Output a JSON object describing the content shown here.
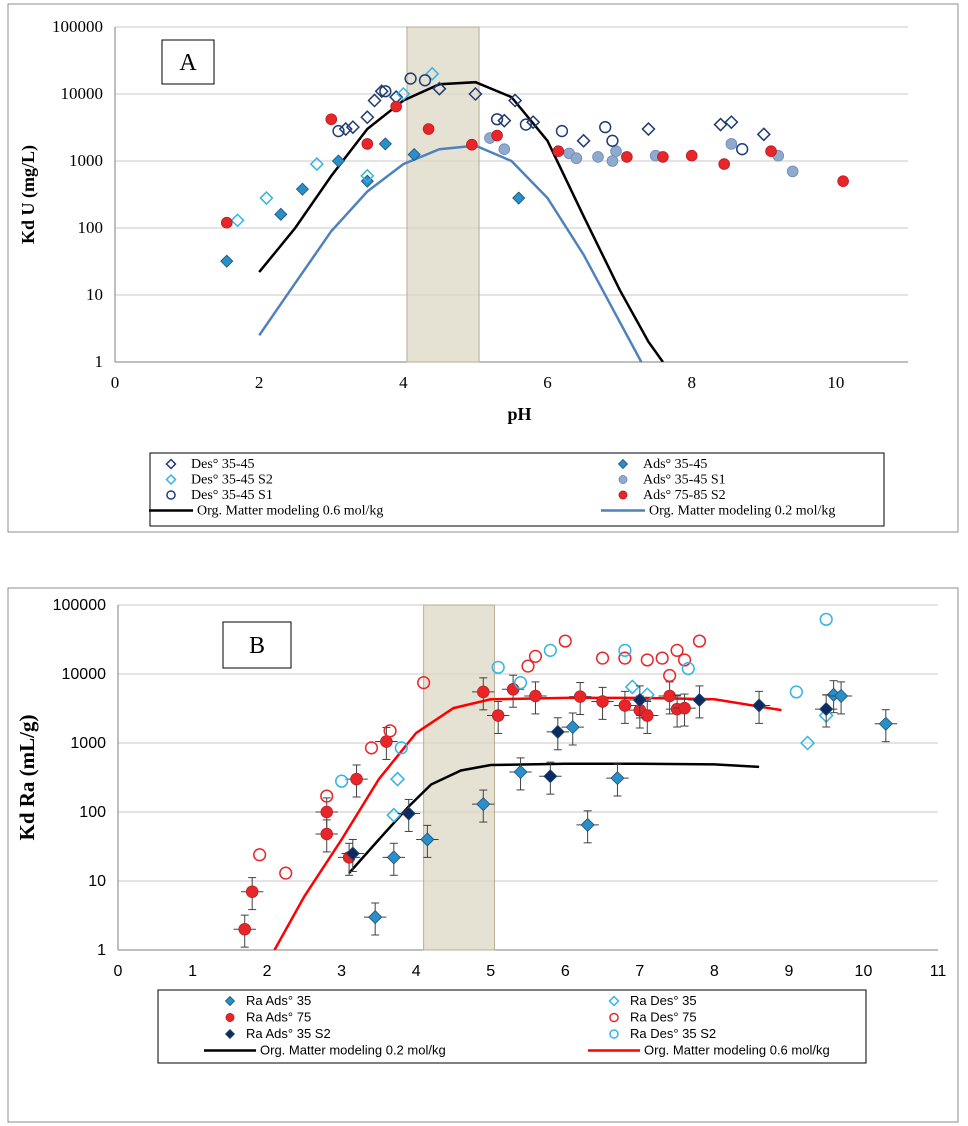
{
  "chart_data": [
    {
      "type": "scatter",
      "panel_label": "A",
      "xlabel": "pH",
      "ylabel": "Kd U (mg/L)",
      "xlim": [
        0,
        11
      ],
      "ylim": [
        1,
        100000
      ],
      "yscale": "log",
      "x_ticks": [
        "0",
        "2",
        "4",
        "6",
        "8",
        "10"
      ],
      "y_ticks": [
        "1",
        "10",
        "100",
        "1000",
        "10000",
        "100000"
      ],
      "highlight_band": [
        4.05,
        5.05
      ],
      "grid": "horizontal",
      "legend_position": "bottom",
      "series": [
        {
          "name": "Des° 35-45",
          "marker": "diamond-open",
          "color": "#1f3b73",
          "points": [
            [
              3.2,
              3000
            ],
            [
              3.3,
              3200
            ],
            [
              3.5,
              4500
            ],
            [
              3.6,
              8000
            ],
            [
              3.7,
              11000
            ],
            [
              3.9,
              9000
            ],
            [
              4.5,
              12000
            ],
            [
              5.0,
              10000
            ],
            [
              5.4,
              4000
            ],
            [
              5.55,
              8000
            ],
            [
              5.8,
              3800
            ],
            [
              6.5,
              2000
            ],
            [
              7.4,
              3000
            ],
            [
              8.4,
              3500
            ],
            [
              8.55,
              3800
            ],
            [
              9.0,
              2500
            ]
          ]
        },
        {
          "name": "Ads° 35-45",
          "marker": "diamond-filled",
          "color": "#2a8fc9",
          "points": [
            [
              1.55,
              32
            ],
            [
              2.3,
              160
            ],
            [
              2.6,
              380
            ],
            [
              3.1,
              1000
            ],
            [
              3.5,
              500
            ],
            [
              3.75,
              1800
            ],
            [
              4.15,
              1250
            ],
            [
              5.6,
              280
            ]
          ]
        },
        {
          "name": "Des° 35-45 S2",
          "marker": "diamond-open",
          "color": "#33b5e5",
          "points": [
            [
              1.7,
              130
            ],
            [
              2.1,
              280
            ],
            [
              2.8,
              900
            ],
            [
              3.5,
              600
            ],
            [
              4.0,
              10000
            ],
            [
              4.4,
              20000
            ]
          ]
        },
        {
          "name": "Ads° 35-45 S1",
          "marker": "circle-filled",
          "color": "#8fa9cf",
          "points": [
            [
              5.2,
              2200
            ],
            [
              5.4,
              1500
            ],
            [
              6.3,
              1300
            ],
            [
              6.4,
              1100
            ],
            [
              6.7,
              1150
            ],
            [
              6.9,
              1000
            ],
            [
              6.95,
              1400
            ],
            [
              7.5,
              1200
            ],
            [
              8.55,
              1800
            ],
            [
              9.2,
              1200
            ],
            [
              9.4,
              700
            ]
          ]
        },
        {
          "name": "Des° 35-45 S1",
          "marker": "circle-open",
          "color": "#1f3b73",
          "points": [
            [
              3.1,
              2800
            ],
            [
              3.75,
              11000
            ],
            [
              4.1,
              17000
            ],
            [
              4.3,
              16000
            ],
            [
              5.3,
              4200
            ],
            [
              5.7,
              3500
            ],
            [
              6.2,
              2800
            ],
            [
              6.8,
              3200
            ],
            [
              6.9,
              2000
            ],
            [
              8.7,
              1500
            ]
          ]
        },
        {
          "name": "Ads° 75-85 S2",
          "marker": "circle-filled",
          "color": "#e8262a",
          "points": [
            [
              1.55,
              120
            ],
            [
              3.0,
              4200
            ],
            [
              3.5,
              1800
            ],
            [
              3.9,
              6500
            ],
            [
              4.35,
              3000
            ],
            [
              4.95,
              1750
            ],
            [
              5.3,
              2400
            ],
            [
              6.15,
              1400
            ],
            [
              7.1,
              1150
            ],
            [
              7.6,
              1150
            ],
            [
              8.0,
              1200
            ],
            [
              8.45,
              900
            ],
            [
              9.1,
              1400
            ],
            [
              10.1,
              500
            ]
          ]
        }
      ],
      "curves": [
        {
          "name": "Org. Matter modeling 0.6 mol/kg",
          "color": "#000000",
          "points": [
            [
              2.0,
              22
            ],
            [
              2.5,
              100
            ],
            [
              3.0,
              600
            ],
            [
              3.5,
              3000
            ],
            [
              4.0,
              8000
            ],
            [
              4.5,
              14000
            ],
            [
              5.0,
              15000
            ],
            [
              5.5,
              9000
            ],
            [
              6.0,
              2000
            ],
            [
              6.5,
              150
            ],
            [
              7.0,
              12
            ],
            [
              7.4,
              2
            ],
            [
              7.6,
              1
            ]
          ]
        },
        {
          "name": "Org. Matter modeling 0.2 mol/kg",
          "color": "#4f81bd",
          "points": [
            [
              2.0,
              2.5
            ],
            [
              2.5,
              15
            ],
            [
              3.0,
              90
            ],
            [
              3.5,
              350
            ],
            [
              4.0,
              900
            ],
            [
              4.5,
              1500
            ],
            [
              5.0,
              1700
            ],
            [
              5.5,
              1000
            ],
            [
              6.0,
              280
            ],
            [
              6.5,
              40
            ],
            [
              7.0,
              4
            ],
            [
              7.3,
              1
            ]
          ]
        }
      ],
      "legend_columns": [
        [
          "Des° 35-45",
          "Des° 35-45 S2",
          "Des° 35-45 S1",
          "Org. Matter modeling 0.6 mol/kg"
        ],
        [
          "Ads° 35-45",
          "Ads° 35-45 S1",
          "Ads° 75-85 S2",
          "Org. Matter modeling 0.2 mol/kg"
        ]
      ]
    },
    {
      "type": "scatter",
      "panel_label": "B",
      "xlabel": "pH",
      "ylabel": "Kd Ra (mL/g)",
      "xlim": [
        0,
        11
      ],
      "ylim": [
        1,
        100000
      ],
      "yscale": "log",
      "x_ticks": [
        "0",
        "1",
        "2",
        "3",
        "4",
        "5",
        "6",
        "7",
        "8",
        "9",
        "10",
        "11"
      ],
      "y_ticks": [
        "1",
        "10",
        "100",
        "1000",
        "10000",
        "100000"
      ],
      "highlight_band": [
        4.1,
        5.05
      ],
      "grid": "horizontal",
      "legend_position": "bottom",
      "series": [
        {
          "name": "Ra Ads° 35",
          "marker": "diamond-filled",
          "color": "#2a8fc9",
          "error_bars": true,
          "points": [
            [
              3.45,
              3
            ],
            [
              3.7,
              22
            ],
            [
              4.15,
              40
            ],
            [
              4.9,
              130
            ],
            [
              5.4,
              380
            ],
            [
              6.1,
              1700
            ],
            [
              6.3,
              65
            ],
            [
              6.7,
              310
            ],
            [
              9.6,
              5000
            ],
            [
              9.7,
              4800
            ],
            [
              10.3,
              1900
            ]
          ]
        },
        {
          "name": "Ra Des° 35",
          "marker": "diamond-open",
          "color": "#33b5e5",
          "points": [
            [
              3.7,
              90
            ],
            [
              3.75,
              300
            ],
            [
              6.9,
              6500
            ],
            [
              7.1,
              5000
            ],
            [
              9.25,
              1000
            ],
            [
              9.5,
              2500
            ]
          ]
        },
        {
          "name": "Ra Ads° 75",
          "marker": "circle-filled",
          "color": "#e8262a",
          "error_bars": true,
          "points": [
            [
              1.7,
              2
            ],
            [
              1.8,
              7
            ],
            [
              2.8,
              100
            ],
            [
              2.8,
              48
            ],
            [
              3.1,
              22
            ],
            [
              3.2,
              300
            ],
            [
              3.6,
              1050
            ],
            [
              4.9,
              5500
            ],
            [
              5.1,
              2500
            ],
            [
              5.3,
              6000
            ],
            [
              5.6,
              4800
            ],
            [
              6.2,
              4700
            ],
            [
              6.5,
              4000
            ],
            [
              6.8,
              3500
            ],
            [
              7.0,
              3000
            ],
            [
              7.1,
              2500
            ],
            [
              7.4,
              4800
            ],
            [
              7.5,
              3100
            ],
            [
              7.6,
              3200
            ]
          ]
        },
        {
          "name": "Ra Des° 75",
          "marker": "circle-open",
          "color": "#e8262a",
          "points": [
            [
              1.9,
              24
            ],
            [
              2.25,
              13
            ],
            [
              2.8,
              170
            ],
            [
              3.4,
              850
            ],
            [
              3.65,
              1500
            ],
            [
              4.1,
              7500
            ],
            [
              5.5,
              13000
            ],
            [
              5.6,
              18000
            ],
            [
              6.0,
              30000
            ],
            [
              6.5,
              17000
            ],
            [
              6.8,
              17000
            ],
            [
              7.1,
              16000
            ],
            [
              7.3,
              17000
            ],
            [
              7.4,
              9500
            ],
            [
              7.5,
              22000
            ],
            [
              7.6,
              16000
            ],
            [
              7.8,
              30000
            ]
          ]
        },
        {
          "name": "Ra Ads° 35 S2",
          "marker": "diamond-filled",
          "color": "#0f2a5c",
          "error_bars": true,
          "points": [
            [
              3.15,
              25
            ],
            [
              3.9,
              95
            ],
            [
              5.8,
              330
            ],
            [
              5.9,
              1450
            ],
            [
              7.0,
              4200
            ],
            [
              7.8,
              4200
            ],
            [
              8.6,
              3500
            ],
            [
              9.5,
              3100
            ]
          ]
        },
        {
          "name": "Ra Des° 35 S2",
          "marker": "circle-open",
          "color": "#33b5e5",
          "points": [
            [
              3.0,
              280
            ],
            [
              3.8,
              850
            ],
            [
              5.1,
              12500
            ],
            [
              5.4,
              7500
            ],
            [
              5.8,
              22000
            ],
            [
              6.8,
              22000
            ],
            [
              7.65,
              12000
            ],
            [
              9.1,
              5500
            ],
            [
              9.5,
              62000
            ]
          ]
        }
      ],
      "curves": [
        {
          "name": "Org. Matter modeling 0.2 mol/kg",
          "color": "#000000",
          "points": [
            [
              3.1,
              13
            ],
            [
              3.5,
              40
            ],
            [
              3.9,
              120
            ],
            [
              4.2,
              250
            ],
            [
              4.6,
              400
            ],
            [
              5.0,
              480
            ],
            [
              6.0,
              500
            ],
            [
              7.0,
              500
            ],
            [
              8.0,
              490
            ],
            [
              8.6,
              450
            ]
          ]
        },
        {
          "name": "Org. Matter modeling 0.6 mol/kg",
          "color": "#ff0000",
          "points": [
            [
              2.1,
              1
            ],
            [
              2.5,
              6
            ],
            [
              3.0,
              40
            ],
            [
              3.5,
              300
            ],
            [
              4.0,
              1400
            ],
            [
              4.5,
              3200
            ],
            [
              5.0,
              4300
            ],
            [
              6.0,
              4500
            ],
            [
              7.0,
              4500
            ],
            [
              8.0,
              4300
            ],
            [
              8.9,
              3000
            ]
          ]
        }
      ],
      "legend_columns": [
        [
          "Ra Ads° 35",
          "Ra Ads° 75",
          "Ra Ads° 35 S2",
          "Org. Matter modeling 0.2 mol/kg"
        ],
        [
          "Ra Des° 35",
          "Ra Des° 75",
          "Ra Des° 35 S2",
          "Org. Matter modeling 0.6 mol/kg"
        ]
      ]
    }
  ]
}
